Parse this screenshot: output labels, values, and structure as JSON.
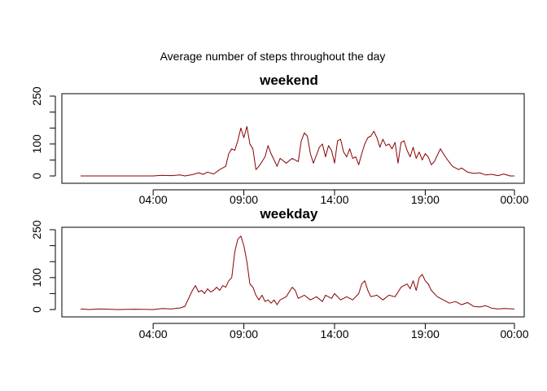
{
  "title": "Average number of steps throughout the day",
  "series_color": "#8B0000",
  "chart_data": [
    {
      "type": "line",
      "title": "weekend",
      "xlabel": "",
      "ylabel": "",
      "x_unit": "time of day",
      "xlim": [
        "00:00",
        "23:55"
      ],
      "ylim": [
        0,
        250
      ],
      "x_ticks": [
        "04:00",
        "09:00",
        "14:00",
        "19:00",
        "00:00"
      ],
      "y_ticks": [
        0,
        100,
        250
      ],
      "y_minor_ticks": [
        50,
        150,
        200
      ],
      "grid": false,
      "points": [
        [
          "00:00",
          0
        ],
        [
          "01:00",
          0
        ],
        [
          "02:00",
          0
        ],
        [
          "03:00",
          0
        ],
        [
          "04:00",
          0
        ],
        [
          "04:30",
          2
        ],
        [
          "05:00",
          1
        ],
        [
          "05:30",
          3
        ],
        [
          "05:45",
          0
        ],
        [
          "06:10",
          4
        ],
        [
          "06:30",
          10
        ],
        [
          "06:45",
          5
        ],
        [
          "07:00",
          12
        ],
        [
          "07:20",
          6
        ],
        [
          "07:40",
          20
        ],
        [
          "08:00",
          30
        ],
        [
          "08:10",
          70
        ],
        [
          "08:20",
          85
        ],
        [
          "08:30",
          80
        ],
        [
          "08:40",
          110
        ],
        [
          "08:50",
          150
        ],
        [
          "09:00",
          120
        ],
        [
          "09:10",
          155
        ],
        [
          "09:20",
          100
        ],
        [
          "09:30",
          85
        ],
        [
          "09:40",
          20
        ],
        [
          "09:50",
          30
        ],
        [
          "10:00",
          45
        ],
        [
          "10:10",
          60
        ],
        [
          "10:20",
          95
        ],
        [
          "10:30",
          70
        ],
        [
          "10:40",
          50
        ],
        [
          "10:50",
          30
        ],
        [
          "11:00",
          55
        ],
        [
          "11:20",
          40
        ],
        [
          "11:40",
          55
        ],
        [
          "12:00",
          45
        ],
        [
          "12:10",
          110
        ],
        [
          "12:20",
          135
        ],
        [
          "12:30",
          125
        ],
        [
          "12:40",
          70
        ],
        [
          "12:50",
          40
        ],
        [
          "13:00",
          65
        ],
        [
          "13:10",
          90
        ],
        [
          "13:20",
          100
        ],
        [
          "13:30",
          60
        ],
        [
          "13:40",
          95
        ],
        [
          "13:50",
          80
        ],
        [
          "14:00",
          40
        ],
        [
          "14:10",
          110
        ],
        [
          "14:20",
          115
        ],
        [
          "14:30",
          75
        ],
        [
          "14:40",
          60
        ],
        [
          "14:50",
          85
        ],
        [
          "15:00",
          55
        ],
        [
          "15:10",
          60
        ],
        [
          "15:20",
          35
        ],
        [
          "15:30",
          70
        ],
        [
          "15:40",
          100
        ],
        [
          "15:50",
          120
        ],
        [
          "16:00",
          125
        ],
        [
          "16:10",
          140
        ],
        [
          "16:20",
          120
        ],
        [
          "16:30",
          90
        ],
        [
          "16:40",
          115
        ],
        [
          "16:50",
          95
        ],
        [
          "17:00",
          100
        ],
        [
          "17:10",
          85
        ],
        [
          "17:20",
          105
        ],
        [
          "17:30",
          40
        ],
        [
          "17:40",
          105
        ],
        [
          "17:50",
          110
        ],
        [
          "18:00",
          80
        ],
        [
          "18:10",
          60
        ],
        [
          "18:20",
          90
        ],
        [
          "18:30",
          55
        ],
        [
          "18:40",
          75
        ],
        [
          "18:50",
          50
        ],
        [
          "19:00",
          70
        ],
        [
          "19:10",
          60
        ],
        [
          "19:20",
          35
        ],
        [
          "19:30",
          45
        ],
        [
          "19:40",
          65
        ],
        [
          "19:50",
          85
        ],
        [
          "20:00",
          70
        ],
        [
          "20:10",
          55
        ],
        [
          "20:30",
          30
        ],
        [
          "20:50",
          20
        ],
        [
          "21:00",
          25
        ],
        [
          "21:20",
          12
        ],
        [
          "21:40",
          8
        ],
        [
          "22:00",
          10
        ],
        [
          "22:20",
          3
        ],
        [
          "22:40",
          5
        ],
        [
          "23:00",
          1
        ],
        [
          "23:20",
          6
        ],
        [
          "23:40",
          0
        ],
        [
          "23:55",
          0
        ]
      ]
    },
    {
      "type": "line",
      "title": "weekday",
      "xlabel": "",
      "ylabel": "",
      "x_unit": "time of day",
      "xlim": [
        "00:00",
        "23:55"
      ],
      "ylim": [
        0,
        250
      ],
      "x_ticks": [
        "04:00",
        "09:00",
        "14:00",
        "19:00",
        "00:00"
      ],
      "y_ticks": [
        0,
        100,
        250
      ],
      "y_minor_ticks": [
        50,
        150,
        200
      ],
      "grid": false,
      "points": [
        [
          "00:00",
          2
        ],
        [
          "00:30",
          0
        ],
        [
          "01:00",
          2
        ],
        [
          "02:00",
          0
        ],
        [
          "03:00",
          1
        ],
        [
          "04:00",
          0
        ],
        [
          "04:30",
          3
        ],
        [
          "05:00",
          2
        ],
        [
          "05:30",
          5
        ],
        [
          "05:45",
          10
        ],
        [
          "06:00",
          40
        ],
        [
          "06:10",
          60
        ],
        [
          "06:20",
          75
        ],
        [
          "06:30",
          55
        ],
        [
          "06:40",
          60
        ],
        [
          "06:50",
          50
        ],
        [
          "07:00",
          65
        ],
        [
          "07:10",
          55
        ],
        [
          "07:20",
          60
        ],
        [
          "07:30",
          70
        ],
        [
          "07:40",
          60
        ],
        [
          "07:50",
          75
        ],
        [
          "08:00",
          70
        ],
        [
          "08:10",
          90
        ],
        [
          "08:20",
          100
        ],
        [
          "08:30",
          180
        ],
        [
          "08:40",
          220
        ],
        [
          "08:50",
          230
        ],
        [
          "09:00",
          200
        ],
        [
          "09:10",
          150
        ],
        [
          "09:20",
          80
        ],
        [
          "09:30",
          70
        ],
        [
          "09:40",
          45
        ],
        [
          "09:50",
          30
        ],
        [
          "10:00",
          45
        ],
        [
          "10:10",
          25
        ],
        [
          "10:20",
          30
        ],
        [
          "10:30",
          20
        ],
        [
          "10:40",
          30
        ],
        [
          "10:50",
          15
        ],
        [
          "11:00",
          30
        ],
        [
          "11:20",
          40
        ],
        [
          "11:30",
          55
        ],
        [
          "11:40",
          70
        ],
        [
          "11:50",
          60
        ],
        [
          "12:00",
          35
        ],
        [
          "12:20",
          45
        ],
        [
          "12:40",
          30
        ],
        [
          "13:00",
          40
        ],
        [
          "13:20",
          25
        ],
        [
          "13:30",
          45
        ],
        [
          "13:50",
          35
        ],
        [
          "14:00",
          50
        ],
        [
          "14:20",
          30
        ],
        [
          "14:40",
          40
        ],
        [
          "15:00",
          30
        ],
        [
          "15:20",
          50
        ],
        [
          "15:30",
          80
        ],
        [
          "15:40",
          90
        ],
        [
          "15:50",
          60
        ],
        [
          "16:00",
          40
        ],
        [
          "16:20",
          45
        ],
        [
          "16:40",
          30
        ],
        [
          "17:00",
          45
        ],
        [
          "17:20",
          40
        ],
        [
          "17:40",
          70
        ],
        [
          "18:00",
          80
        ],
        [
          "18:10",
          65
        ],
        [
          "18:20",
          90
        ],
        [
          "18:30",
          60
        ],
        [
          "18:40",
          100
        ],
        [
          "18:50",
          110
        ],
        [
          "19:00",
          90
        ],
        [
          "19:10",
          80
        ],
        [
          "19:20",
          60
        ],
        [
          "19:40",
          40
        ],
        [
          "20:00",
          30
        ],
        [
          "20:20",
          20
        ],
        [
          "20:40",
          25
        ],
        [
          "21:00",
          15
        ],
        [
          "21:20",
          22
        ],
        [
          "21:40",
          10
        ],
        [
          "22:00",
          8
        ],
        [
          "22:20",
          12
        ],
        [
          "22:40",
          4
        ],
        [
          "23:00",
          2
        ],
        [
          "23:20",
          3
        ],
        [
          "23:55",
          2
        ]
      ]
    }
  ]
}
